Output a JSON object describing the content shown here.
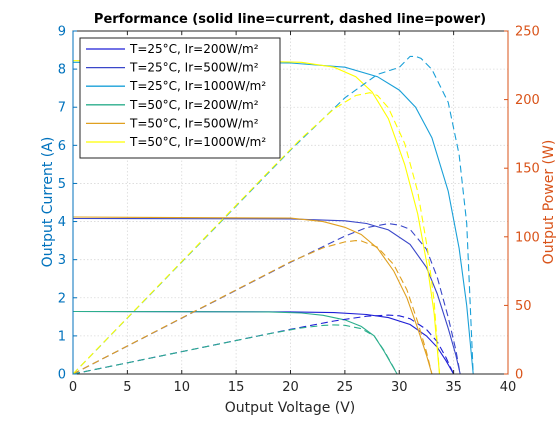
{
  "chart_data": {
    "type": "line",
    "title": "Performance (solid line=current, dashed line=power)",
    "xlabel": "Output Voltage (V)",
    "ylabel_left": "Output Current (A)",
    "ylabel_right": "Output Power (W)",
    "xlim": [
      0,
      40
    ],
    "ylim_left": [
      0,
      9
    ],
    "ylim_right": [
      0,
      250
    ],
    "xticks": [
      0,
      5,
      10,
      15,
      20,
      25,
      30,
      35,
      40
    ],
    "yticks_left": [
      0,
      1,
      2,
      3,
      4,
      5,
      6,
      7,
      8,
      9
    ],
    "yticks_right": [
      0,
      50,
      100,
      150,
      200,
      250
    ],
    "grid": true,
    "legend_position": "top-left",
    "left_axis_color": "#0072BD",
    "right_axis_color": "#D95319",
    "series": [
      {
        "name": "T=25°C, Ir=200W/m²",
        "color": "#1f1fd6",
        "current": [
          [
            0,
            1.64
          ],
          [
            20,
            1.63
          ],
          [
            24,
            1.61
          ],
          [
            27,
            1.56
          ],
          [
            29,
            1.48
          ],
          [
            31,
            1.3
          ],
          [
            32.5,
            1.0
          ],
          [
            33.5,
            0.7
          ],
          [
            34.3,
            0.35
          ],
          [
            35,
            0
          ]
        ],
        "power": [
          [
            0,
            0
          ],
          [
            20,
            32.6
          ],
          [
            24,
            38.6
          ],
          [
            27,
            42.1
          ],
          [
            29,
            42.9
          ],
          [
            30,
            42.4
          ],
          [
            31,
            40.3
          ],
          [
            32.5,
            32.5
          ],
          [
            33.5,
            23.5
          ],
          [
            34.3,
            12
          ],
          [
            35,
            0
          ]
        ]
      },
      {
        "name": "T=25°C, Ir=500W/m²",
        "color": "#3a47c9",
        "current": [
          [
            0,
            4.08
          ],
          [
            20,
            4.07
          ],
          [
            25,
            4.02
          ],
          [
            27,
            3.95
          ],
          [
            29,
            3.78
          ],
          [
            31,
            3.4
          ],
          [
            32.5,
            2.8
          ],
          [
            33.5,
            2.1
          ],
          [
            34.5,
            1.2
          ],
          [
            35.2,
            0.5
          ],
          [
            35.6,
            0
          ]
        ],
        "power": [
          [
            0,
            0
          ],
          [
            20,
            81.4
          ],
          [
            25,
            100.5
          ],
          [
            27,
            106.7
          ],
          [
            29,
            109.6
          ],
          [
            30,
            108.5
          ],
          [
            31,
            105.4
          ],
          [
            32.5,
            91
          ],
          [
            33.5,
            70.4
          ],
          [
            34.5,
            41.4
          ],
          [
            35.2,
            17.6
          ],
          [
            35.6,
            0
          ]
        ]
      },
      {
        "name": "T=25°C, Ir=1000W/m²",
        "color": "#1aa0d8",
        "current": [
          [
            0,
            8.18
          ],
          [
            20,
            8.16
          ],
          [
            25,
            8.05
          ],
          [
            28,
            7.8
          ],
          [
            30,
            7.45
          ],
          [
            31.5,
            7.0
          ],
          [
            33,
            6.2
          ],
          [
            34.5,
            4.8
          ],
          [
            35.5,
            3.3
          ],
          [
            36.2,
            1.8
          ],
          [
            36.8,
            0
          ]
        ],
        "power": [
          [
            0,
            0
          ],
          [
            20,
            163.2
          ],
          [
            25,
            201.3
          ],
          [
            28,
            218.4
          ],
          [
            30,
            223.5
          ],
          [
            31,
            231.5
          ],
          [
            31.5,
            231.5
          ],
          [
            32,
            230
          ],
          [
            33,
            222
          ],
          [
            34.5,
            198
          ],
          [
            35.5,
            160
          ],
          [
            36.2,
            110
          ],
          [
            36.8,
            0
          ]
        ]
      },
      {
        "name": "T=50°C, Ir=200W/m²",
        "color": "#2cae8c",
        "current": [
          [
            0,
            1.64
          ],
          [
            18,
            1.63
          ],
          [
            21,
            1.6
          ],
          [
            23,
            1.54
          ],
          [
            25,
            1.42
          ],
          [
            26.5,
            1.25
          ],
          [
            27.7,
            1.0
          ],
          [
            28.6,
            0.6
          ],
          [
            29.4,
            0.2
          ],
          [
            29.8,
            0
          ]
        ],
        "power": [
          [
            0,
            0
          ],
          [
            18,
            29.3
          ],
          [
            21,
            33.6
          ],
          [
            23,
            35.4
          ],
          [
            24,
            35.8
          ],
          [
            25,
            35.5
          ],
          [
            26.5,
            33.1
          ],
          [
            27.7,
            27.7
          ],
          [
            28.6,
            17.2
          ],
          [
            29.4,
            5.9
          ],
          [
            29.8,
            0
          ]
        ]
      },
      {
        "name": "T=50°C, Ir=500W/m²",
        "color": "#e0a020",
        "current": [
          [
            0,
            4.12
          ],
          [
            20,
            4.09
          ],
          [
            23,
            4.0
          ],
          [
            25,
            3.85
          ],
          [
            26.5,
            3.66
          ],
          [
            28,
            3.3
          ],
          [
            29.5,
            2.7
          ],
          [
            30.7,
            2.0
          ],
          [
            31.7,
            1.2
          ],
          [
            32.5,
            0.5
          ],
          [
            33,
            0
          ]
        ],
        "power": [
          [
            0,
            0
          ],
          [
            20,
            81.8
          ],
          [
            23,
            92
          ],
          [
            25,
            96.3
          ],
          [
            26,
            97.2
          ],
          [
            26.5,
            97
          ],
          [
            28,
            92.4
          ],
          [
            29.5,
            79.7
          ],
          [
            30.7,
            61.4
          ],
          [
            31.7,
            38
          ],
          [
            32.5,
            16.3
          ],
          [
            33,
            0
          ]
        ]
      },
      {
        "name": "T=50°C, Ir=1000W/m²",
        "color": "#ffff00",
        "current": [
          [
            0,
            8.22
          ],
          [
            18,
            8.2
          ],
          [
            21,
            8.18
          ],
          [
            24,
            8.05
          ],
          [
            26,
            7.8
          ],
          [
            27.5,
            7.4
          ],
          [
            29,
            6.7
          ],
          [
            30.5,
            5.5
          ],
          [
            31.7,
            4.2
          ],
          [
            32.6,
            2.8
          ],
          [
            33.2,
            1.6
          ],
          [
            33.7,
            0
          ]
        ],
        "power": [
          [
            0,
            0
          ],
          [
            18,
            147.6
          ],
          [
            21,
            171.8
          ],
          [
            24,
            193.2
          ],
          [
            26,
            203
          ],
          [
            27.3,
            205
          ],
          [
            28,
            203
          ],
          [
            29,
            194
          ],
          [
            30.5,
            168
          ],
          [
            31.7,
            133
          ],
          [
            32.6,
            91
          ],
          [
            33.2,
            53
          ],
          [
            33.7,
            0
          ]
        ]
      }
    ]
  }
}
